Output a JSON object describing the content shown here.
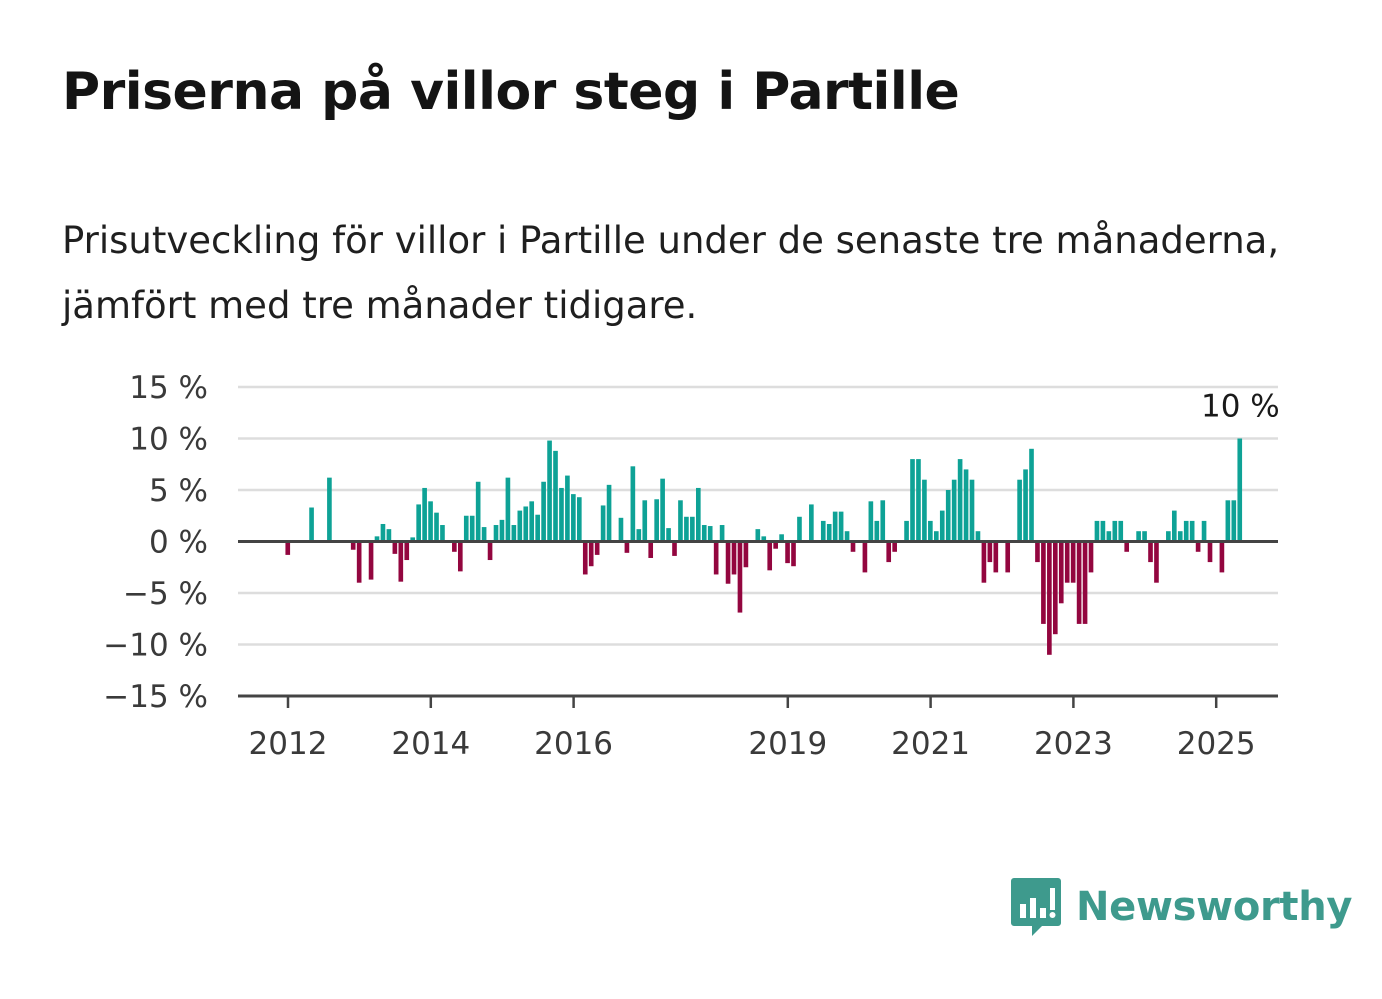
{
  "title": "Priserna på villor steg i Partille",
  "subtitle": "Prisutveckling för villor i Partille under de senaste tre månaderna, jämfört med tre månader tidigare.",
  "brand": {
    "name": "Newsworthy",
    "icon": "bar-chart-speech-bubble-icon"
  },
  "colors": {
    "positive": "#0ea296",
    "negative": "#93063f",
    "grid": "#dddddd",
    "axis": "#444444",
    "brand": "#3e9a8d"
  },
  "chart_data": {
    "type": "bar",
    "title": "Priserna på villor steg i Partille",
    "ylim": [
      -15,
      15
    ],
    "yticks": [
      15,
      10,
      5,
      0,
      -5,
      -10,
      -15
    ],
    "ytick_labels": [
      "15 %",
      "10 %",
      "5 %",
      "0 %",
      "−5 %",
      "−10 %",
      "−15 %"
    ],
    "xtick_labels": [
      "2012",
      "2014",
      "2016",
      "2019",
      "2021",
      "2023",
      "2025"
    ],
    "xtick_years": [
      2012,
      2014,
      2016,
      2019,
      2021,
      2023,
      2025
    ],
    "x_start": 2011.33,
    "months_per_bar": 1,
    "grid": true,
    "last_value_label": "10 %",
    "values": [
      0,
      0,
      0,
      0,
      0,
      0,
      0,
      0,
      -1.3,
      0,
      0,
      0,
      3.3,
      0,
      0,
      6.2,
      0,
      0,
      0,
      -0.8,
      -4,
      0,
      -3.7,
      0.5,
      1.7,
      1.2,
      -1.2,
      -3.9,
      -1.8,
      0.4,
      3.6,
      5.2,
      3.9,
      2.8,
      1.6,
      0,
      -1,
      -2.9,
      2.5,
      2.5,
      5.8,
      1.4,
      -1.8,
      1.6,
      2.1,
      6.2,
      1.6,
      3,
      3.4,
      3.9,
      2.6,
      5.8,
      9.8,
      8.8,
      5.2,
      6.4,
      4.6,
      4.3,
      -3.2,
      -2.4,
      -1.3,
      3.5,
      5.5,
      0,
      2.3,
      -1.1,
      7.3,
      1.2,
      4,
      -1.6,
      4.1,
      6.1,
      1.3,
      -1.4,
      4,
      2.4,
      2.4,
      5.2,
      1.6,
      1.5,
      -3.2,
      1.6,
      -4.1,
      -3.2,
      -6.9,
      -2.5,
      0,
      1.2,
      0.5,
      -2.8,
      -0.7,
      0.7,
      -2.1,
      -2.4,
      2.4,
      0,
      3.6,
      0.1,
      2,
      1.7,
      2.9,
      2.9,
      1,
      -1,
      0,
      -3,
      3.9,
      2,
      4,
      -2,
      -1,
      0,
      2,
      8,
      8,
      6,
      2,
      1,
      3,
      5,
      6,
      8,
      7,
      6,
      1,
      -4,
      -2,
      -3,
      0,
      -3,
      0,
      6,
      7,
      9,
      -2,
      -8,
      -11,
      -9,
      -6,
      -4,
      -4,
      -8,
      -8,
      -3,
      2,
      2,
      1,
      2,
      2,
      -1,
      0,
      1,
      1,
      -2,
      -4,
      0,
      1,
      3,
      1,
      2,
      2,
      -1,
      2,
      -2,
      0,
      -3,
      4,
      4,
      10
    ]
  }
}
